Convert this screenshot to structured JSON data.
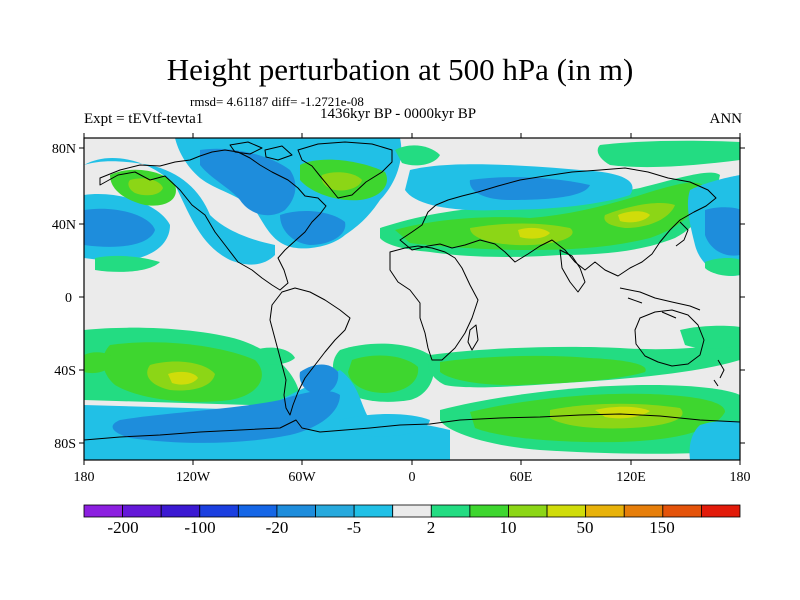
{
  "title": "Height perturbation at 500 hPa (in m)",
  "stats": "rmsd= 4.61187 diff= -1.2721e-08",
  "left_label": "Expt = tEVtf-tevta1",
  "center_label": "1436kyr BP - 0000kyr BP",
  "right_label": "ANN",
  "lat_ticks": [
    "80N",
    "40N",
    "0",
    "40S",
    "80S"
  ],
  "lon_ticks": [
    "180",
    "120W",
    "60W",
    "0",
    "60E",
    "120E",
    "180"
  ],
  "colorbar": {
    "labels": [
      "-200",
      "-100",
      "-20",
      "-5",
      "2",
      "10",
      "50",
      "150"
    ],
    "colors": [
      "#8c1fe0",
      "#6418d8",
      "#3b19d2",
      "#1b3fe0",
      "#1566e6",
      "#1e8ddc",
      "#27a9dd",
      "#21c0e6",
      "#ebebeb",
      "#23dc82",
      "#3ed62f",
      "#8cd616",
      "#d0dc0a",
      "#e8b20a",
      "#e67e0a",
      "#e4530a",
      "#e21b0a"
    ]
  },
  "colors": {
    "neutral": "#ebebeb",
    "light_blue": "#21c0e6",
    "mid_blue": "#1e8ddc",
    "teal_green": "#23dc82",
    "green": "#3ed62f",
    "yellow_green": "#8cd616",
    "yellow": "#d0dc0a",
    "coast": "#000000"
  }
}
